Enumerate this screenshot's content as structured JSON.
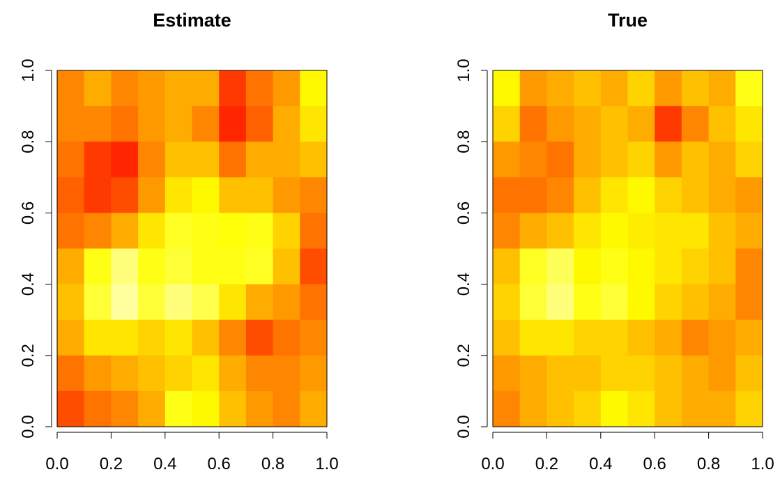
{
  "chart_data": [
    {
      "type": "heatmap",
      "title": "Estimate",
      "xlim": [
        0,
        1
      ],
      "ylim": [
        0,
        1
      ],
      "xticks": [
        {
          "value": 0,
          "label": "0.0"
        },
        0.2,
        0.4,
        0.6,
        0.8,
        {
          "value": 1,
          "label": "1.0"
        }
      ],
      "yticks": [
        {
          "value": 0,
          "label": "0.0"
        },
        0.2,
        0.4,
        0.6,
        0.8,
        {
          "value": 1,
          "label": "1.0"
        }
      ],
      "colors": [
        "#ff0000",
        "#ff8000",
        "#ffff00",
        "#ffffe0"
      ],
      "z": [
        [
          0.35,
          0.45,
          0.35,
          0.4,
          0.45,
          0.45,
          0.15,
          0.3,
          0.4,
          0.65
        ],
        [
          0.35,
          0.35,
          0.3,
          0.4,
          0.45,
          0.35,
          0.1,
          0.25,
          0.45,
          0.6
        ],
        [
          0.3,
          0.15,
          0.1,
          0.35,
          0.5,
          0.5,
          0.3,
          0.45,
          0.45,
          0.5
        ],
        [
          0.25,
          0.15,
          0.2,
          0.4,
          0.6,
          0.65,
          0.5,
          0.5,
          0.4,
          0.35
        ],
        [
          0.3,
          0.35,
          0.45,
          0.6,
          0.72,
          0.7,
          0.68,
          0.7,
          0.55,
          0.3
        ],
        [
          0.45,
          0.7,
          0.85,
          0.7,
          0.75,
          0.7,
          0.7,
          0.72,
          0.5,
          0.2
        ],
        [
          0.5,
          0.75,
          0.9,
          0.75,
          0.85,
          0.78,
          0.6,
          0.45,
          0.4,
          0.3
        ],
        [
          0.45,
          0.6,
          0.6,
          0.55,
          0.6,
          0.5,
          0.35,
          0.2,
          0.3,
          0.35
        ],
        [
          0.3,
          0.4,
          0.45,
          0.5,
          0.55,
          0.6,
          0.45,
          0.35,
          0.35,
          0.4
        ],
        [
          0.2,
          0.3,
          0.35,
          0.45,
          0.7,
          0.65,
          0.5,
          0.4,
          0.35,
          0.45
        ]
      ]
    },
    {
      "type": "heatmap",
      "title": "True",
      "xlim": [
        0,
        1
      ],
      "ylim": [
        0,
        1
      ],
      "xticks": [
        {
          "value": 0,
          "label": "0.0"
        },
        0.2,
        0.4,
        0.6,
        0.8,
        {
          "value": 1,
          "label": "1.0"
        }
      ],
      "yticks": [
        {
          "value": 0,
          "label": "0.0"
        },
        0.2,
        0.4,
        0.6,
        0.8,
        {
          "value": 1,
          "label": "1.0"
        }
      ],
      "colors": [
        "#ff0000",
        "#ff8000",
        "#ffff00",
        "#ffffe0"
      ],
      "z": [
        [
          0.65,
          0.4,
          0.45,
          0.5,
          0.45,
          0.55,
          0.4,
          0.5,
          0.45,
          0.7
        ],
        [
          0.55,
          0.3,
          0.4,
          0.45,
          0.5,
          0.45,
          0.15,
          0.35,
          0.5,
          0.6
        ],
        [
          0.4,
          0.35,
          0.3,
          0.45,
          0.5,
          0.55,
          0.4,
          0.5,
          0.45,
          0.55
        ],
        [
          0.3,
          0.3,
          0.35,
          0.5,
          0.6,
          0.65,
          0.55,
          0.5,
          0.45,
          0.4
        ],
        [
          0.35,
          0.45,
          0.5,
          0.6,
          0.65,
          0.62,
          0.6,
          0.6,
          0.5,
          0.45
        ],
        [
          0.5,
          0.72,
          0.8,
          0.65,
          0.7,
          0.65,
          0.6,
          0.55,
          0.5,
          0.35
        ],
        [
          0.55,
          0.75,
          0.85,
          0.7,
          0.75,
          0.65,
          0.55,
          0.5,
          0.45,
          0.35
        ],
        [
          0.5,
          0.6,
          0.6,
          0.55,
          0.55,
          0.5,
          0.45,
          0.35,
          0.4,
          0.45
        ],
        [
          0.4,
          0.45,
          0.5,
          0.5,
          0.55,
          0.55,
          0.5,
          0.45,
          0.4,
          0.5
        ],
        [
          0.35,
          0.45,
          0.5,
          0.55,
          0.65,
          0.6,
          0.5,
          0.45,
          0.45,
          0.55
        ]
      ]
    }
  ]
}
